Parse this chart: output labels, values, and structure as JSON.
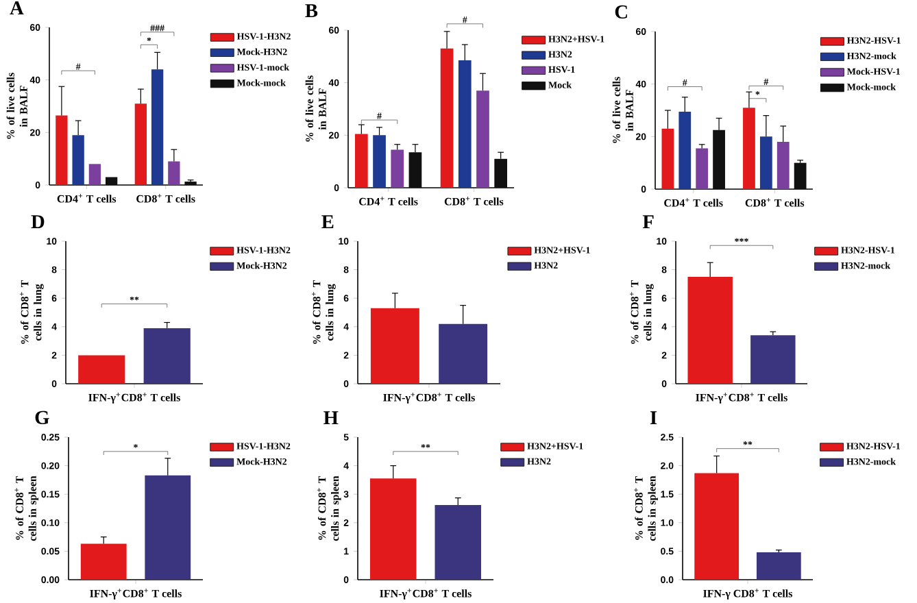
{
  "chart_data": [
    {
      "type": "bar",
      "title": "A",
      "ylabel": "% of live cells in BALF",
      "categories": [
        "CD4$^{+}$ T cells",
        "CD8$^{+}$ T cells"
      ],
      "ylim": [
        0,
        60
      ],
      "yticks": [
        0,
        20,
        40,
        60
      ],
      "legend": "right",
      "series": [
        {
          "name": "HSV-1-H3N2",
          "color": "#e31a1c",
          "values": [
            26.5,
            31
          ],
          "errors": [
            11,
            5.5
          ]
        },
        {
          "name": "Mock-H3N2",
          "color": "#1f3a93",
          "values": [
            19,
            44
          ],
          "errors": [
            5.5,
            6.5
          ]
        },
        {
          "name": "HSV-1-mock",
          "color": "#7b3f9e",
          "values": [
            8,
            9
          ],
          "errors": [
            null,
            4.5
          ]
        },
        {
          "name": "Mock-mock",
          "color": "#111111",
          "values": [
            3,
            1.3
          ],
          "errors": [
            null,
            0.6
          ]
        }
      ],
      "annotations": [
        "#",
        "*",
        "###"
      ]
    },
    {
      "type": "bar",
      "title": "B",
      "ylabel": "% of live cells in BALF",
      "categories": [
        "CD4$^{+}$ T cells",
        "CD8$^{+}$ T cells"
      ],
      "ylim": [
        0,
        60
      ],
      "yticks": [
        0,
        20,
        40,
        60
      ],
      "legend": "right",
      "series": [
        {
          "name": "H3N2+HSV-1",
          "color": "#e31a1c",
          "values": [
            20.5,
            53
          ],
          "errors": [
            3.5,
            6.5
          ]
        },
        {
          "name": "H3N2",
          "color": "#1f3a93",
          "values": [
            20,
            48.5
          ],
          "errors": [
            3,
            6
          ]
        },
        {
          "name": "HSV-1",
          "color": "#7b3f9e",
          "values": [
            14.5,
            37
          ],
          "errors": [
            2,
            6.5
          ]
        },
        {
          "name": "Mock",
          "color": "#111111",
          "values": [
            13.5,
            11
          ],
          "errors": [
            3,
            2.5
          ]
        }
      ],
      "annotations": [
        "#",
        "#"
      ]
    },
    {
      "type": "bar",
      "title": "C",
      "ylabel": "% of live cells in BALF",
      "categories": [
        "CD4$^{+}$ T cells",
        "CD8$^{+}$ T cells"
      ],
      "ylim": [
        0,
        60
      ],
      "yticks": [
        0,
        20,
        40,
        60
      ],
      "legend": "right",
      "series": [
        {
          "name": "H3N2-HSV-1",
          "color": "#e31a1c",
          "values": [
            23,
            31
          ],
          "errors": [
            7,
            6
          ]
        },
        {
          "name": "H3N2-mock",
          "color": "#1f3a93",
          "values": [
            29.5,
            20
          ],
          "errors": [
            5.5,
            8
          ]
        },
        {
          "name": "Mock-HSV-1",
          "color": "#7b3f9e",
          "values": [
            15.5,
            18
          ],
          "errors": [
            1.5,
            6
          ]
        },
        {
          "name": "Mock-mock",
          "color": "#111111",
          "values": [
            22.5,
            10
          ],
          "errors": [
            4.5,
            1
          ]
        }
      ],
      "annotations": [
        "#",
        "*",
        "#"
      ]
    },
    {
      "type": "bar",
      "title": "D",
      "ylabel": "% of CD8$^{+}$ T cells in lung",
      "categories": [
        "IFN-γ$^{+}$CD8$^{+}$ T cells"
      ],
      "ylim": [
        0,
        10
      ],
      "yticks": [
        0,
        2,
        4,
        6,
        8,
        10
      ],
      "legend": "right",
      "series": [
        {
          "name": "HSV-1-H3N2",
          "color": "#e31a1c",
          "values": [
            2.0
          ],
          "errors": [
            null
          ]
        },
        {
          "name": "Mock-H3N2",
          "color": "#3b3580",
          "values": [
            3.9
          ],
          "errors": [
            0.4
          ]
        }
      ],
      "annotations": [
        "**"
      ]
    },
    {
      "type": "bar",
      "title": "E",
      "ylabel": "% of CD8$^{+}$ T cells in lung",
      "categories": [
        "IFN-γ$^{+}$CD8$^{+}$ T cells"
      ],
      "ylim": [
        0,
        10
      ],
      "yticks": [
        0,
        2,
        4,
        6,
        8,
        10
      ],
      "legend": "right",
      "series": [
        {
          "name": "H3N2+HSV-1",
          "color": "#e31a1c",
          "values": [
            5.3
          ],
          "errors": [
            1.05
          ]
        },
        {
          "name": "H3N2",
          "color": "#3b3580",
          "values": [
            4.2
          ],
          "errors": [
            1.3
          ]
        }
      ]
    },
    {
      "type": "bar",
      "title": "F",
      "ylabel": "% of CD8$^{+}$ T cells in lung",
      "categories": [
        "IFN-γ$^{+}$CD8$^{+}$ T cells"
      ],
      "ylim": [
        0,
        10
      ],
      "yticks": [
        0,
        2,
        4,
        6,
        8,
        10
      ],
      "legend": "right",
      "series": [
        {
          "name": "H3N2-HSV-1",
          "color": "#e31a1c",
          "values": [
            7.5
          ],
          "errors": [
            1.0
          ]
        },
        {
          "name": "H3N2-mock",
          "color": "#3b3580",
          "values": [
            3.4
          ],
          "errors": [
            0.25
          ]
        }
      ],
      "annotations": [
        "***"
      ]
    },
    {
      "type": "bar",
      "title": "G",
      "ylabel": "% of CD8$^{+}$ T cells in spleen",
      "categories": [
        "IFN-γ$^{+}$CD8$^{+}$ T cells"
      ],
      "ylim": [
        0,
        0.25
      ],
      "yticks": [
        {
          "value": 0,
          "label": "0.00"
        },
        {
          "value": 0.05,
          "label": "0.05"
        },
        {
          "value": 0.1,
          "label": "0.10"
        },
        {
          "value": 0.15,
          "label": "0.15"
        },
        {
          "value": 0.2,
          "label": "0.20"
        },
        {
          "value": 0.25,
          "label": "0.25"
        }
      ],
      "legend": "right",
      "series": [
        {
          "name": "HSV-1-H3N2",
          "color": "#e31a1c",
          "values": [
            0.063
          ],
          "errors": [
            0.012
          ]
        },
        {
          "name": "Mock-H3N2",
          "color": "#3b3580",
          "values": [
            0.183
          ],
          "errors": [
            0.03
          ]
        }
      ],
      "annotations": [
        "*"
      ]
    },
    {
      "type": "bar",
      "title": "H",
      "ylabel": "% of CD8$^{+}$ T cells in spleen",
      "categories": [
        "IFN-γ$^{+}$CD8$^{+}$ T cells"
      ],
      "ylim": [
        0,
        5
      ],
      "yticks": [
        0,
        1,
        2,
        3,
        4,
        5
      ],
      "legend": "right",
      "series": [
        {
          "name": "H3N2+HSV-1",
          "color": "#e31a1c",
          "values": [
            3.55
          ],
          "errors": [
            0.45
          ]
        },
        {
          "name": "H3N2",
          "color": "#3b3580",
          "values": [
            2.62
          ],
          "errors": [
            0.25
          ]
        }
      ],
      "annotations": [
        "**"
      ]
    },
    {
      "type": "bar",
      "title": "I",
      "ylabel": "% of CD8$^{+}$ T cells in spleen",
      "categories": [
        "IFN-γ CD8$^{+}$ T cells"
      ],
      "ylim": [
        0,
        2.5
      ],
      "yticks": [
        {
          "value": 0,
          "label": "0.0"
        },
        {
          "value": 0.5,
          "label": "0.5"
        },
        {
          "value": 1,
          "label": "1.0"
        },
        {
          "value": 1.5,
          "label": "1.5"
        },
        {
          "value": 2,
          "label": "2.0"
        },
        {
          "value": 2.5,
          "label": "2.5"
        }
      ],
      "legend": "right",
      "series": [
        {
          "name": "H3N2-HSV-1",
          "color": "#e31a1c",
          "values": [
            1.87
          ],
          "errors": [
            0.3
          ]
        },
        {
          "name": "H3N2-mock",
          "color": "#3b3580",
          "values": [
            0.48
          ],
          "errors": [
            0.04
          ]
        }
      ],
      "annotations": [
        "**"
      ]
    }
  ]
}
